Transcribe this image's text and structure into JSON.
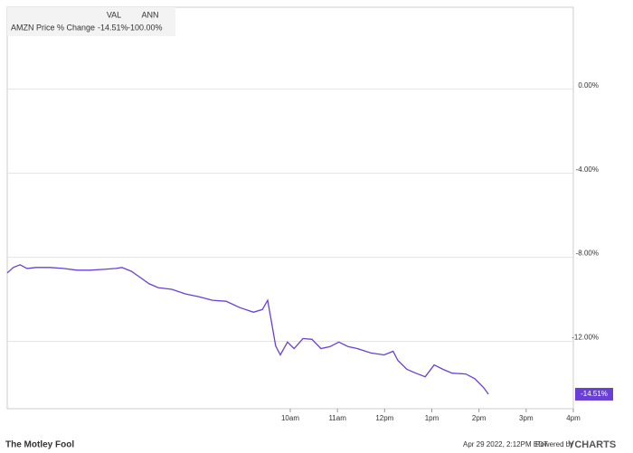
{
  "chart_data": {
    "type": "line",
    "x": [
      4.0,
      4.13,
      4.27,
      4.42,
      4.61,
      4.9,
      5.19,
      5.48,
      5.76,
      6.05,
      6.3,
      6.43,
      6.63,
      6.82,
      7.01,
      7.2,
      7.49,
      7.78,
      8.06,
      8.35,
      8.64,
      8.93,
      9.22,
      9.41,
      9.52,
      9.6,
      9.69,
      9.79,
      9.94,
      10.08,
      10.27,
      10.46,
      10.65,
      10.84,
      11.03,
      11.23,
      11.42,
      11.71,
      11.99,
      12.18,
      12.28,
      12.47,
      12.66,
      12.86,
      13.05,
      13.24,
      13.43,
      13.72,
      13.91,
      14.1,
      14.2
    ],
    "series": [
      {
        "name": "AMZN Price % Change",
        "color": "#6a3fd6",
        "end_label": "-14.51%",
        "values": [
          -8.74,
          -8.48,
          -8.35,
          -8.53,
          -8.48,
          -8.48,
          -8.53,
          -8.61,
          -8.61,
          -8.57,
          -8.53,
          -8.48,
          -8.66,
          -8.96,
          -9.26,
          -9.44,
          -9.52,
          -9.74,
          -9.87,
          -10.04,
          -10.09,
          -10.39,
          -10.61,
          -10.48,
          -10.04,
          -11.04,
          -12.21,
          -12.64,
          -12.03,
          -12.34,
          -11.86,
          -11.9,
          -12.34,
          -12.25,
          -12.03,
          -12.25,
          -12.34,
          -12.55,
          -12.64,
          -12.47,
          -12.9,
          -13.33,
          -13.51,
          -13.68,
          -13.12,
          -13.33,
          -13.51,
          -13.55,
          -13.77,
          -14.2,
          -14.51
        ]
      }
    ],
    "xlim": [
      4,
      16
    ],
    "xticks": [
      {
        "value": 10,
        "label": "10am"
      },
      {
        "value": 11,
        "label": "11am"
      },
      {
        "value": 12,
        "label": "12pm"
      },
      {
        "value": 13,
        "label": "1pm"
      },
      {
        "value": 14,
        "label": "2pm"
      },
      {
        "value": 15,
        "label": "3pm"
      },
      {
        "value": 16,
        "label": "4pm"
      }
    ],
    "ylim": [
      -15.2,
      3.9
    ],
    "yticks": [
      {
        "value": 0,
        "label": "0.00%"
      },
      {
        "value": -4,
        "label": "-4.00%"
      },
      {
        "value": -8,
        "label": "-8.00%"
      },
      {
        "value": -12,
        "label": "-12.00%"
      }
    ],
    "grid": true,
    "legend": {
      "headers": [
        "VAL",
        "ANN"
      ],
      "rows": [
        {
          "val": "-14.51%",
          "ann": "-100.00%"
        }
      ]
    },
    "footer": {
      "brand": "The Motley Fool",
      "timestamp": "Apr 29 2022, 2:12PM EDT.",
      "powered": "Powered by",
      "provider": "YCHARTS"
    }
  }
}
